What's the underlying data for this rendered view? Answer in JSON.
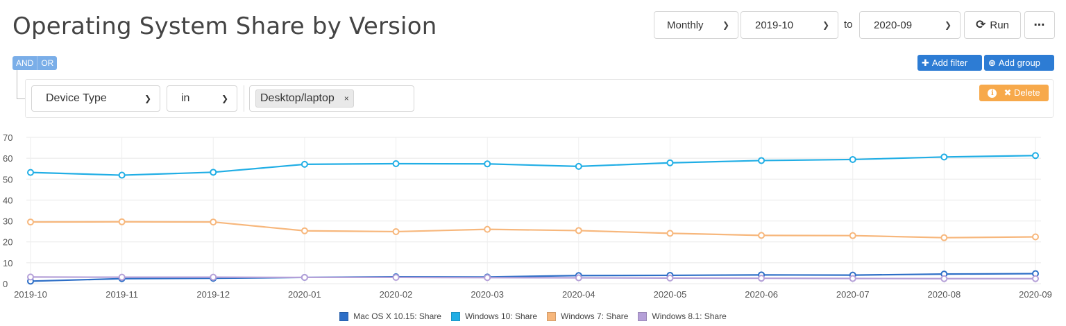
{
  "page_title": "Operating System Share by Version",
  "controls": {
    "interval": "Monthly",
    "from": "2019-10",
    "to_label": "to",
    "to": "2020-09",
    "run_label": "Run",
    "run_icon": "refresh-icon",
    "more_label": "⋯"
  },
  "filter": {
    "and_label": "AND",
    "or_label": "OR",
    "add_filter_label": "Add filter",
    "add_group_label": "Add group",
    "rule": {
      "field": "Device Type",
      "operator": "in",
      "value_tag": "Desktop/laptop",
      "remove_tag": "×"
    },
    "delete_label": "Delete",
    "info_icon": "info-icon"
  },
  "chart_data": {
    "type": "line",
    "categories": [
      "2019-10",
      "2019-11",
      "2019-12",
      "2020-01",
      "2020-02",
      "2020-03",
      "2020-04",
      "2020-05",
      "2020-06",
      "2020-07",
      "2020-08",
      "2020-09"
    ],
    "yticks": [
      0,
      10,
      20,
      30,
      40,
      50,
      60,
      70
    ],
    "ylim": [
      0,
      70
    ],
    "grid": true,
    "legend_position": "bottom",
    "series": [
      {
        "name": "Mac OS X 10.15: Share",
        "color": "#2e6fc7",
        "values": [
          1.2,
          2.4,
          2.6,
          3.0,
          3.3,
          3.2,
          3.9,
          4.0,
          4.2,
          4.1,
          4.6,
          4.8
        ]
      },
      {
        "name": "Windows 10: Share",
        "color": "#21aee5",
        "values": [
          53.2,
          51.9,
          53.3,
          57.1,
          57.4,
          57.3,
          56.1,
          57.8,
          58.9,
          59.4,
          60.6,
          61.3
        ]
      },
      {
        "name": "Windows 7: Share",
        "color": "#f7b77c",
        "values": [
          29.5,
          29.6,
          29.5,
          25.3,
          24.9,
          26.0,
          25.4,
          24.1,
          23.1,
          23.0,
          22.0,
          22.4
        ]
      },
      {
        "name": "Windows 8.1: Share",
        "color": "#b5a0d8",
        "values": [
          3.2,
          3.1,
          3.1,
          3.0,
          3.0,
          2.9,
          2.8,
          2.7,
          2.6,
          2.5,
          2.4,
          2.4
        ]
      }
    ]
  }
}
